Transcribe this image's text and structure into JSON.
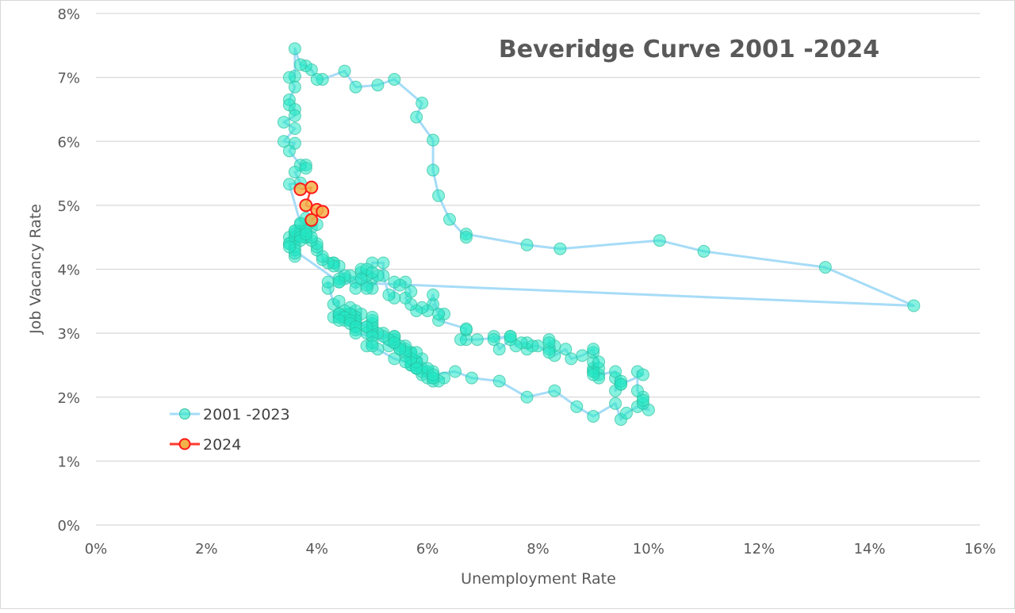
{
  "chart_data": {
    "type": "scatter",
    "title": "Beveridge Curve 2001 -2024",
    "xlabel": "Unemployment Rate",
    "ylabel": "Job Vacancy Rate",
    "xlim": [
      0,
      16
    ],
    "ylim": [
      0,
      8
    ],
    "x_ticks": [
      "0%",
      "2%",
      "4%",
      "6%",
      "8%",
      "10%",
      "12%",
      "14%",
      "16%"
    ],
    "y_ticks": [
      "0%",
      "1%",
      "2%",
      "3%",
      "4%",
      "5%",
      "6%",
      "7%",
      "8%"
    ],
    "grid": "horizontal",
    "legend_position": "bottom-left",
    "lines_connect_points": true,
    "series": [
      {
        "name": "2001 -2023",
        "line_color": "#a6dcf7",
        "marker_fill": "#22e8c4",
        "marker_edge": "#2fbf9f",
        "points": [
          [
            4.2,
            3.7
          ],
          [
            4.2,
            3.8
          ],
          [
            4.3,
            3.45
          ],
          [
            4.4,
            3.5
          ],
          [
            4.3,
            3.25
          ],
          [
            4.5,
            3.3
          ],
          [
            4.6,
            3.2
          ],
          [
            4.9,
            3.1
          ],
          [
            5.0,
            3.0
          ],
          [
            5.3,
            2.8
          ],
          [
            5.5,
            2.75
          ],
          [
            5.7,
            2.7
          ],
          [
            5.7,
            2.6
          ],
          [
            5.7,
            2.55
          ],
          [
            5.7,
            2.7
          ],
          [
            5.9,
            2.6
          ],
          [
            5.8,
            2.5
          ],
          [
            5.8,
            2.55
          ],
          [
            5.8,
            2.45
          ],
          [
            5.7,
            2.5
          ],
          [
            5.7,
            2.6
          ],
          [
            5.7,
            2.5
          ],
          [
            5.9,
            2.45
          ],
          [
            6.0,
            2.4
          ],
          [
            5.8,
            2.45
          ],
          [
            5.9,
            2.35
          ],
          [
            5.9,
            2.4
          ],
          [
            6.0,
            2.3
          ],
          [
            6.1,
            2.25
          ],
          [
            6.3,
            2.3
          ],
          [
            6.2,
            2.25
          ],
          [
            6.1,
            2.3
          ],
          [
            6.1,
            2.4
          ],
          [
            6.0,
            2.45
          ],
          [
            5.8,
            2.55
          ],
          [
            5.7,
            2.6
          ],
          [
            5.7,
            2.6
          ],
          [
            5.6,
            2.65
          ],
          [
            5.8,
            2.7
          ],
          [
            5.6,
            2.75
          ],
          [
            5.6,
            2.8
          ],
          [
            5.6,
            2.7
          ],
          [
            5.5,
            2.8
          ],
          [
            5.4,
            2.85
          ],
          [
            5.4,
            2.95
          ],
          [
            5.5,
            2.75
          ],
          [
            5.4,
            2.9
          ],
          [
            5.4,
            2.95
          ],
          [
            5.3,
            2.9
          ],
          [
            5.4,
            2.85
          ],
          [
            5.2,
            3.0
          ],
          [
            5.2,
            2.95
          ],
          [
            5.1,
            3.0
          ],
          [
            5.0,
            3.05
          ],
          [
            5.0,
            3.1
          ],
          [
            4.9,
            3.0
          ],
          [
            5.0,
            3.15
          ],
          [
            5.0,
            3.2
          ],
          [
            5.0,
            3.25
          ],
          [
            4.9,
            3.1
          ],
          [
            4.7,
            3.2
          ],
          [
            4.8,
            3.3
          ],
          [
            4.7,
            3.35
          ],
          [
            4.7,
            3.25
          ],
          [
            4.6,
            3.4
          ],
          [
            4.6,
            3.3
          ],
          [
            4.7,
            3.15
          ],
          [
            4.7,
            3.2
          ],
          [
            4.5,
            3.25
          ],
          [
            4.4,
            3.3
          ],
          [
            4.5,
            3.2
          ],
          [
            4.4,
            3.25
          ],
          [
            4.6,
            3.3
          ],
          [
            4.5,
            3.35
          ],
          [
            4.4,
            3.3
          ],
          [
            4.5,
            3.25
          ],
          [
            4.4,
            3.2
          ],
          [
            4.6,
            3.2
          ],
          [
            4.7,
            3.1
          ],
          [
            4.6,
            3.15
          ],
          [
            4.7,
            3.05
          ],
          [
            4.7,
            3.1
          ],
          [
            4.7,
            3.0
          ],
          [
            5.0,
            2.95
          ],
          [
            5.0,
            2.85
          ],
          [
            4.9,
            2.8
          ],
          [
            5.1,
            2.75
          ],
          [
            5.0,
            2.8
          ],
          [
            5.4,
            2.6
          ],
          [
            5.6,
            2.55
          ],
          [
            5.8,
            2.45
          ],
          [
            6.1,
            2.3
          ],
          [
            6.1,
            2.35
          ],
          [
            6.5,
            2.4
          ],
          [
            6.8,
            2.3
          ],
          [
            7.3,
            2.25
          ],
          [
            7.8,
            2.0
          ],
          [
            8.3,
            2.1
          ],
          [
            8.7,
            1.85
          ],
          [
            9.0,
            1.7
          ],
          [
            9.4,
            1.9
          ],
          [
            9.5,
            1.65
          ],
          [
            9.6,
            1.75
          ],
          [
            9.8,
            1.85
          ],
          [
            10.0,
            1.8
          ],
          [
            9.9,
            1.9
          ],
          [
            9.9,
            2.0
          ],
          [
            9.9,
            1.95
          ],
          [
            9.8,
            2.1
          ],
          [
            9.8,
            2.4
          ],
          [
            9.9,
            2.35
          ],
          [
            9.5,
            2.2
          ],
          [
            9.4,
            2.3
          ],
          [
            9.4,
            2.1
          ],
          [
            9.5,
            2.25
          ],
          [
            9.5,
            2.2
          ],
          [
            9.4,
            2.4
          ],
          [
            9.1,
            2.35
          ],
          [
            9.0,
            2.4
          ],
          [
            9.0,
            2.45
          ],
          [
            9.1,
            2.3
          ],
          [
            9.0,
            2.4
          ],
          [
            9.0,
            2.55
          ],
          [
            9.1,
            2.45
          ],
          [
            9.0,
            2.35
          ],
          [
            9.1,
            2.55
          ],
          [
            9.0,
            2.7
          ],
          [
            9.0,
            2.75
          ],
          [
            8.8,
            2.65
          ],
          [
            8.6,
            2.6
          ],
          [
            8.5,
            2.75
          ],
          [
            8.3,
            2.65
          ],
          [
            8.3,
            2.8
          ],
          [
            8.2,
            2.75
          ],
          [
            8.2,
            2.9
          ],
          [
            8.2,
            2.85
          ],
          [
            8.2,
            2.7
          ],
          [
            8.0,
            2.8
          ],
          [
            7.9,
            2.8
          ],
          [
            7.8,
            2.75
          ],
          [
            7.8,
            2.85
          ],
          [
            7.7,
            2.85
          ],
          [
            7.6,
            2.8
          ],
          [
            7.5,
            2.95
          ],
          [
            7.5,
            2.9
          ],
          [
            7.3,
            2.75
          ],
          [
            7.2,
            2.95
          ],
          [
            7.2,
            2.9
          ],
          [
            7.5,
            2.95
          ],
          [
            6.9,
            2.9
          ],
          [
            6.7,
            2.9
          ],
          [
            6.6,
            2.9
          ],
          [
            6.7,
            3.05
          ],
          [
            6.7,
            3.07
          ],
          [
            6.2,
            3.2
          ],
          [
            6.3,
            3.3
          ],
          [
            6.1,
            3.45
          ],
          [
            6.2,
            3.3
          ],
          [
            6.1,
            3.6
          ],
          [
            6.0,
            3.35
          ],
          [
            5.9,
            3.4
          ],
          [
            5.8,
            3.35
          ],
          [
            5.7,
            3.45
          ],
          [
            5.6,
            3.55
          ],
          [
            5.7,
            3.65
          ],
          [
            5.6,
            3.8
          ],
          [
            5.5,
            3.75
          ],
          [
            5.4,
            3.8
          ],
          [
            5.4,
            3.55
          ],
          [
            5.3,
            3.6
          ],
          [
            5.2,
            3.9
          ],
          [
            5.2,
            4.1
          ],
          [
            5.0,
            4.1
          ],
          [
            5.0,
            3.85
          ],
          [
            5.1,
            3.9
          ],
          [
            5.0,
            3.7
          ],
          [
            4.9,
            3.75
          ],
          [
            4.8,
            3.95
          ],
          [
            4.7,
            3.8
          ],
          [
            4.7,
            3.7
          ],
          [
            4.8,
            4.0
          ],
          [
            4.9,
            3.9
          ],
          [
            4.9,
            4.0
          ],
          [
            5.0,
            3.95
          ],
          [
            4.8,
            3.85
          ],
          [
            4.9,
            3.7
          ],
          [
            4.6,
            3.9
          ],
          [
            4.5,
            3.85
          ],
          [
            4.4,
            3.8
          ],
          [
            4.4,
            3.85
          ],
          [
            4.5,
            3.9
          ],
          [
            4.3,
            4.1
          ],
          [
            4.4,
            4.05
          ],
          [
            4.3,
            4.1
          ],
          [
            4.3,
            4.05
          ],
          [
            4.2,
            4.1
          ],
          [
            4.1,
            4.15
          ],
          [
            4.1,
            4.2
          ],
          [
            4.0,
            4.3
          ],
          [
            4.0,
            4.35
          ],
          [
            4.0,
            4.4
          ],
          [
            3.8,
            4.5
          ],
          [
            3.9,
            4.45
          ],
          [
            3.8,
            4.5
          ],
          [
            3.7,
            4.55
          ],
          [
            3.8,
            4.6
          ],
          [
            3.9,
            4.65
          ],
          [
            4.0,
            4.7
          ],
          [
            3.9,
            4.75
          ],
          [
            3.7,
            4.7
          ],
          [
            3.6,
            4.55
          ],
          [
            3.6,
            4.5
          ],
          [
            3.5,
            4.5
          ],
          [
            3.6,
            4.6
          ],
          [
            3.6,
            4.45
          ],
          [
            3.6,
            4.2
          ],
          [
            3.5,
            4.4
          ],
          [
            3.6,
            4.5
          ],
          [
            3.7,
            4.6
          ],
          [
            3.8,
            4.8
          ],
          [
            3.7,
            4.55
          ],
          [
            3.6,
            4.6
          ],
          [
            3.7,
            4.5
          ],
          [
            3.7,
            4.45
          ],
          [
            3.5,
            4.4
          ],
          [
            3.6,
            4.35
          ],
          [
            3.6,
            4.3
          ],
          [
            3.6,
            4.25
          ],
          [
            3.5,
            4.35
          ],
          [
            4.4,
            3.8
          ],
          [
            14.8,
            3.43
          ],
          [
            13.2,
            4.03
          ],
          [
            11.0,
            4.28
          ],
          [
            10.2,
            4.45
          ],
          [
            8.4,
            4.32
          ],
          [
            7.8,
            4.38
          ],
          [
            6.7,
            4.55
          ],
          [
            6.7,
            4.5
          ],
          [
            6.4,
            4.78
          ],
          [
            6.2,
            5.15
          ],
          [
            6.1,
            5.55
          ],
          [
            6.1,
            6.02
          ],
          [
            5.8,
            6.38
          ],
          [
            5.9,
            6.6
          ],
          [
            5.4,
            6.97
          ],
          [
            5.1,
            6.88
          ],
          [
            4.7,
            6.85
          ],
          [
            4.5,
            7.1
          ],
          [
            4.1,
            6.97
          ],
          [
            4.0,
            6.97
          ],
          [
            3.9,
            7.12
          ],
          [
            3.8,
            7.18
          ],
          [
            3.7,
            7.2
          ],
          [
            3.6,
            7.45
          ],
          [
            3.6,
            7.02
          ],
          [
            3.5,
            7.0
          ],
          [
            3.6,
            6.85
          ],
          [
            3.5,
            6.65
          ],
          [
            3.5,
            6.57
          ],
          [
            3.6,
            6.5
          ],
          [
            3.6,
            6.4
          ],
          [
            3.4,
            6.3
          ],
          [
            3.6,
            6.2
          ],
          [
            3.4,
            6.0
          ],
          [
            3.6,
            5.97
          ],
          [
            3.5,
            5.85
          ],
          [
            3.7,
            5.63
          ],
          [
            3.8,
            5.63
          ],
          [
            3.8,
            5.58
          ],
          [
            3.6,
            5.52
          ],
          [
            3.7,
            5.35
          ],
          [
            3.5,
            5.33
          ],
          [
            3.7,
            4.72
          ],
          [
            3.8,
            4.6
          ],
          [
            3.9,
            4.5
          ],
          [
            3.8,
            4.55
          ]
        ]
      },
      {
        "name": "2024",
        "line_color": "#ff3b2f",
        "marker_fill": "#f2b24a",
        "marker_edge": "#ff1a1a",
        "points": [
          [
            3.7,
            5.25
          ],
          [
            3.9,
            5.28
          ],
          [
            3.8,
            5.0
          ],
          [
            4.0,
            4.93
          ],
          [
            4.1,
            4.9
          ],
          [
            3.9,
            4.77
          ]
        ]
      }
    ]
  }
}
